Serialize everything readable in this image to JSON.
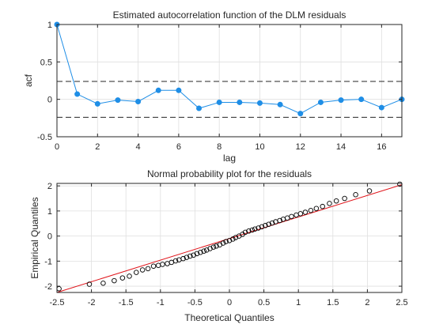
{
  "chart_data": [
    {
      "type": "line",
      "title": "Estimated autocorrelation function of the DLM residuals",
      "xlabel": "lag",
      "ylabel": "acf",
      "xlim": [
        0,
        17
      ],
      "ylim": [
        -0.5,
        1
      ],
      "xticks": [
        "0",
        "2",
        "4",
        "6",
        "8",
        "10",
        "12",
        "14",
        "16"
      ],
      "yticks": [
        "-0.5",
        "0",
        "0.5",
        "1"
      ],
      "grid": true,
      "legend": "none",
      "color": "#1f8ee6",
      "confidence_bounds": [
        0.24,
        -0.24
      ],
      "x": [
        0,
        1,
        2,
        3,
        4,
        5,
        6,
        7,
        8,
        9,
        10,
        11,
        12,
        13,
        14,
        15,
        16,
        17
      ],
      "values": [
        1.0,
        0.07,
        -0.06,
        -0.01,
        -0.03,
        0.12,
        0.12,
        -0.12,
        -0.04,
        -0.04,
        -0.05,
        -0.07,
        -0.19,
        -0.04,
        -0.01,
        0.0,
        -0.11,
        0.0
      ]
    },
    {
      "type": "scatter",
      "title": "Normal probability plot for the residuals",
      "xlabel": "Theoretical Quantiles",
      "ylabel": "Empirical Quantiles",
      "xlim": [
        -2.5,
        2.5
      ],
      "ylim": [
        -2.25,
        2.1
      ],
      "xticks": [
        "-2.5",
        "-2",
        "-1.5",
        "-1",
        "-0.5",
        "0",
        "0.5",
        "1",
        "1.5",
        "2",
        "2.5"
      ],
      "yticks": [
        "-2",
        "-1",
        "0",
        "1",
        "2"
      ],
      "grid": true,
      "legend": "none",
      "marker_color": "#000000",
      "reference_line": {
        "color": "#e0151b",
        "from": [
          -2.5,
          -2.25
        ],
        "to": [
          2.5,
          2.05
        ]
      },
      "points": [
        [
          -2.47,
          -2.1
        ],
        [
          -2.03,
          -1.92
        ],
        [
          -1.83,
          -1.88
        ],
        [
          -1.67,
          -1.78
        ],
        [
          -1.55,
          -1.67
        ],
        [
          -1.45,
          -1.6
        ],
        [
          -1.35,
          -1.45
        ],
        [
          -1.26,
          -1.35
        ],
        [
          -1.18,
          -1.3
        ],
        [
          -1.1,
          -1.2
        ],
        [
          -1.03,
          -1.17
        ],
        [
          -0.97,
          -1.13
        ],
        [
          -0.9,
          -1.1
        ],
        [
          -0.84,
          -1.05
        ],
        [
          -0.78,
          -0.99
        ],
        [
          -0.73,
          -0.95
        ],
        [
          -0.67,
          -0.9
        ],
        [
          -0.62,
          -0.85
        ],
        [
          -0.57,
          -0.8
        ],
        [
          -0.52,
          -0.76
        ],
        [
          -0.47,
          -0.7
        ],
        [
          -0.42,
          -0.65
        ],
        [
          -0.37,
          -0.6
        ],
        [
          -0.33,
          -0.56
        ],
        [
          -0.28,
          -0.5
        ],
        [
          -0.23,
          -0.44
        ],
        [
          -0.19,
          -0.4
        ],
        [
          -0.14,
          -0.35
        ],
        [
          -0.09,
          -0.28
        ],
        [
          -0.05,
          -0.22
        ],
        [
          0.0,
          -0.18
        ],
        [
          0.05,
          -0.12
        ],
        [
          0.09,
          -0.06
        ],
        [
          0.14,
          0.0
        ],
        [
          0.19,
          0.07
        ],
        [
          0.23,
          0.15
        ],
        [
          0.28,
          0.2
        ],
        [
          0.33,
          0.24
        ],
        [
          0.37,
          0.28
        ],
        [
          0.42,
          0.32
        ],
        [
          0.47,
          0.37
        ],
        [
          0.52,
          0.42
        ],
        [
          0.57,
          0.47
        ],
        [
          0.62,
          0.52
        ],
        [
          0.67,
          0.57
        ],
        [
          0.73,
          0.62
        ],
        [
          0.78,
          0.67
        ],
        [
          0.84,
          0.72
        ],
        [
          0.9,
          0.78
        ],
        [
          0.97,
          0.84
        ],
        [
          1.03,
          0.89
        ],
        [
          1.1,
          0.95
        ],
        [
          1.18,
          1.02
        ],
        [
          1.26,
          1.1
        ],
        [
          1.35,
          1.18
        ],
        [
          1.45,
          1.3
        ],
        [
          1.55,
          1.4
        ],
        [
          1.67,
          1.5
        ],
        [
          1.83,
          1.65
        ],
        [
          2.03,
          1.8
        ],
        [
          2.47,
          2.07
        ]
      ]
    }
  ]
}
